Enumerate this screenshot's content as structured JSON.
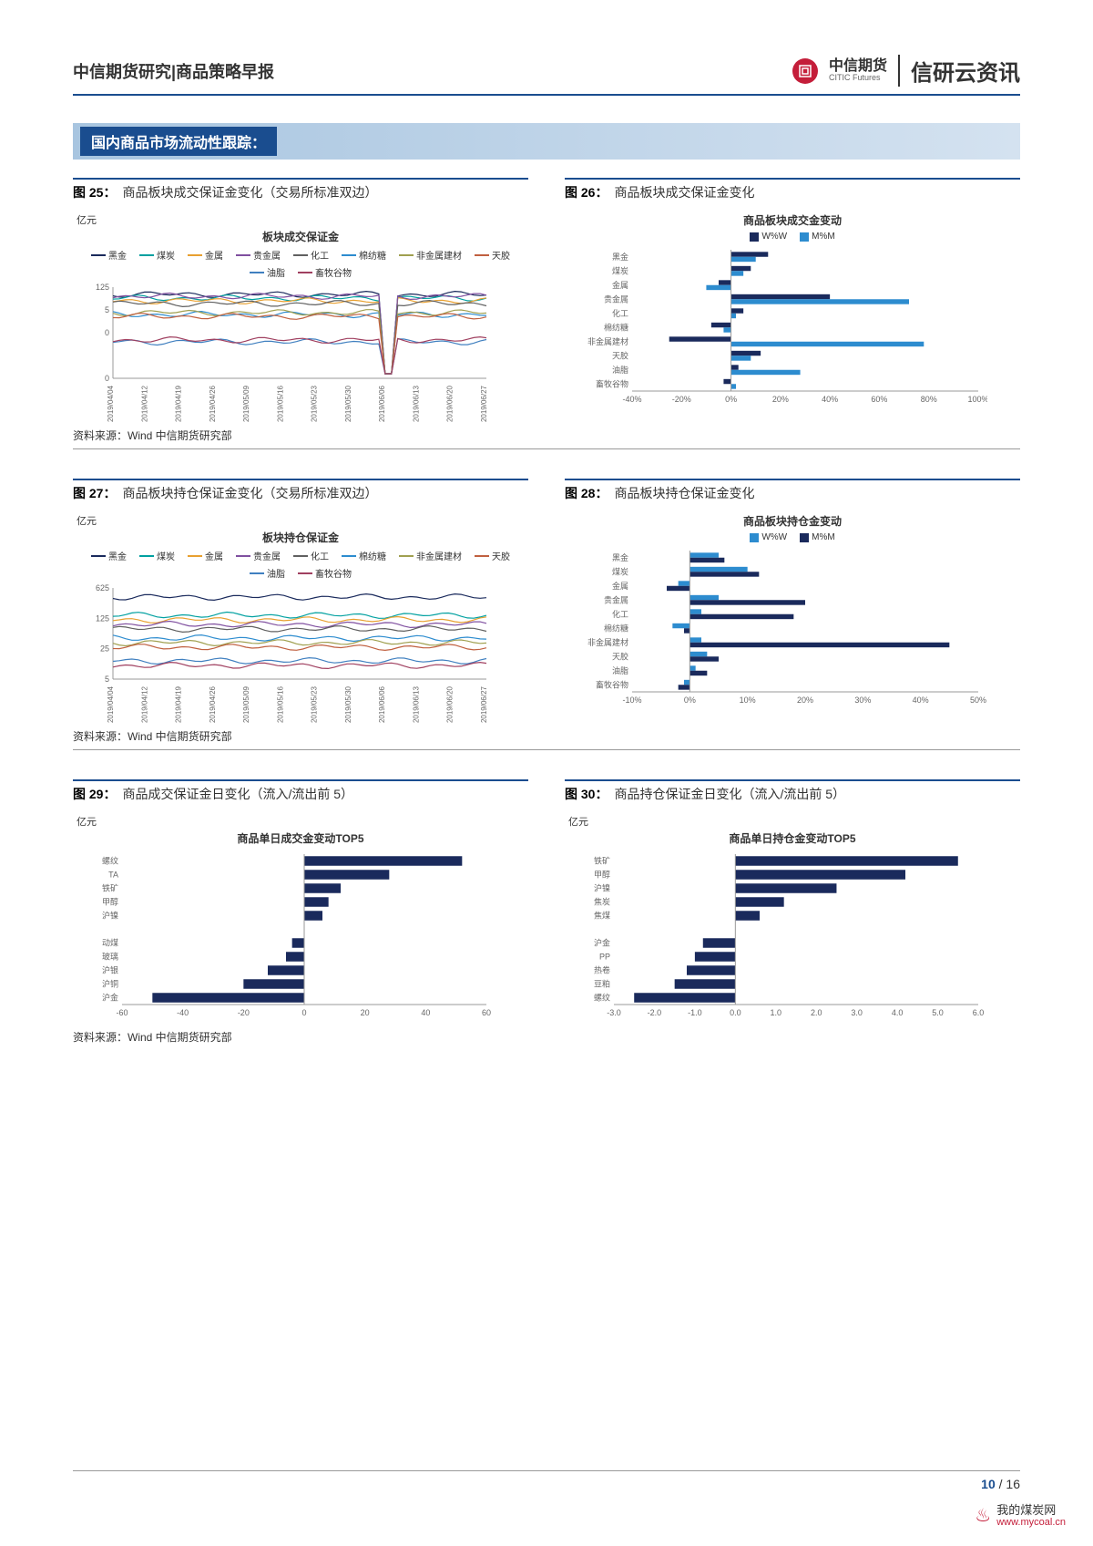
{
  "header": {
    "title": "中信期货研究|商品策略早报",
    "logo_main": "中信期货",
    "logo_sub": "CITIC Futures",
    "brand": "信研云资讯"
  },
  "section_title": "国内商品市场流动性跟踪：",
  "source_label": "资料来源：Wind 中信期货研究部",
  "footer": {
    "page": "10",
    "sep": "/",
    "total": "16"
  },
  "watermark": {
    "text": "我的煤炭网",
    "url": "www.mycoal.cn"
  },
  "colors": {
    "navy": "#1a2a5c",
    "blue": "#2d8ccf",
    "dark": "#1a4d8f",
    "red": "#c41e3a",
    "teal": "#00a0a0",
    "orange": "#e8a030",
    "purple": "#8050a0",
    "gray": "#808080"
  },
  "chart25": {
    "label": "图 25：",
    "title": "商品板块成交保证金变化（交易所标准双边）",
    "subtitle": "板块成交保证金",
    "ylabel": "亿元",
    "legend": [
      "黑金",
      "煤炭",
      "金属",
      "贵金属",
      "化工",
      "棉纺糖",
      "非金属建材",
      "天胶",
      "油脂",
      "畜牧谷物"
    ],
    "legend_colors": [
      "#1a2a5c",
      "#00a0a0",
      "#e8a030",
      "#8050a0",
      "#606060",
      "#2d8ccf",
      "#a0a050",
      "#c06040",
      "#4080c0",
      "#a04060"
    ],
    "yticks": [
      "125",
      "5",
      "0",
      "",
      "0"
    ],
    "xticks": [
      "2019/04/04",
      "2019/04/12",
      "2019/04/19",
      "2019/04/26",
      "2019/05/09",
      "2019/05/16",
      "2019/05/23",
      "2019/05/30",
      "2019/06/06",
      "2019/06/13",
      "2019/06/20",
      "2019/06/27"
    ]
  },
  "chart26": {
    "label": "图 26：",
    "title": "商品板块成交保证金变化",
    "subtitle": "商品板块成交金变动",
    "legend": [
      "W%W",
      "M%M"
    ],
    "legend_colors": [
      "#1a2a5c",
      "#2d8ccf"
    ],
    "categories": [
      "黑金",
      "煤炭",
      "金属",
      "贵金属",
      "化工",
      "棉纺糖",
      "非金属建材",
      "天胶",
      "油脂",
      "畜牧谷物"
    ],
    "ww": [
      15,
      8,
      -5,
      40,
      5,
      -8,
      -25,
      12,
      3,
      -3
    ],
    "mm": [
      10,
      5,
      -10,
      72,
      2,
      -3,
      78,
      8,
      28,
      2
    ],
    "xticks": [
      "-40%",
      "-20%",
      "0%",
      "20%",
      "40%",
      "60%",
      "80%",
      "100%"
    ],
    "xmin": -40,
    "xmax": 100
  },
  "chart27": {
    "label": "图 27：",
    "title": "商品板块持仓保证金变化（交易所标准双边）",
    "subtitle": "板块持仓保证金",
    "ylabel": "亿元",
    "legend": [
      "黑金",
      "煤炭",
      "金属",
      "贵金属",
      "化工",
      "棉纺糖",
      "非金属建材",
      "天胶",
      "油脂",
      "畜牧谷物"
    ],
    "legend_colors": [
      "#1a2a5c",
      "#00a0a0",
      "#e8a030",
      "#8050a0",
      "#606060",
      "#2d8ccf",
      "#a0a050",
      "#c06040",
      "#4080c0",
      "#a04060"
    ],
    "yticks": [
      "625",
      "125",
      "25",
      "5"
    ],
    "xticks": [
      "2019/04/04",
      "2019/04/12",
      "2019/04/19",
      "2019/04/26",
      "2019/05/09",
      "2019/05/16",
      "2019/05/23",
      "2019/05/30",
      "2019/06/06",
      "2019/06/13",
      "2019/06/20",
      "2019/06/27"
    ]
  },
  "chart28": {
    "label": "图 28：",
    "title": "商品板块持仓保证金变化",
    "subtitle": "商品板块持仓金变动",
    "legend": [
      "W%W",
      "M%M"
    ],
    "legend_colors": [
      "#2d8ccf",
      "#1a2a5c"
    ],
    "categories": [
      "黑金",
      "煤炭",
      "金属",
      "贵金属",
      "化工",
      "棉纺糖",
      "非金属建材",
      "天胶",
      "油脂",
      "畜牧谷物"
    ],
    "ww": [
      5,
      10,
      -2,
      5,
      2,
      -3,
      2,
      3,
      1,
      -1
    ],
    "mm": [
      6,
      12,
      -4,
      20,
      18,
      -1,
      45,
      5,
      3,
      -2
    ],
    "xticks": [
      "-10%",
      "0%",
      "10%",
      "20%",
      "30%",
      "40%",
      "50%"
    ],
    "xmin": -10,
    "xmax": 50
  },
  "chart29": {
    "label": "图 29：",
    "title": "商品成交保证金日变化（流入/流出前 5）",
    "subtitle": "商品单日成交金变动TOP5",
    "ylabel": "亿元",
    "categories": [
      "螺纹",
      "TA",
      "铁矿",
      "甲醇",
      "沪镍",
      "",
      "动煤",
      "玻璃",
      "沪银",
      "沪铜",
      "沪金"
    ],
    "values": [
      52,
      28,
      12,
      8,
      6,
      0,
      -4,
      -6,
      -12,
      -20,
      -50
    ],
    "color": "#1a2a5c",
    "xticks": [
      "-60",
      "-40",
      "-20",
      "0",
      "20",
      "40",
      "60"
    ],
    "xmin": -60,
    "xmax": 60
  },
  "chart30": {
    "label": "图 30：",
    "title": "商品持仓保证金日变化（流入/流出前 5）",
    "subtitle": "商品单日持仓金变动TOP5",
    "ylabel": "亿元",
    "categories": [
      "铁矿",
      "甲醇",
      "沪镍",
      "焦炭",
      "焦煤",
      "",
      "沪金",
      "PP",
      "热卷",
      "豆粕",
      "螺纹"
    ],
    "values": [
      5.5,
      4.2,
      2.5,
      1.2,
      0.6,
      0,
      -0.8,
      -1.0,
      -1.2,
      -1.5,
      -2.5
    ],
    "color": "#1a2a5c",
    "xticks": [
      "-3.0",
      "-2.0",
      "-1.0",
      "0.0",
      "1.0",
      "2.0",
      "3.0",
      "4.0",
      "5.0",
      "6.0"
    ],
    "xmin": -3,
    "xmax": 6
  }
}
